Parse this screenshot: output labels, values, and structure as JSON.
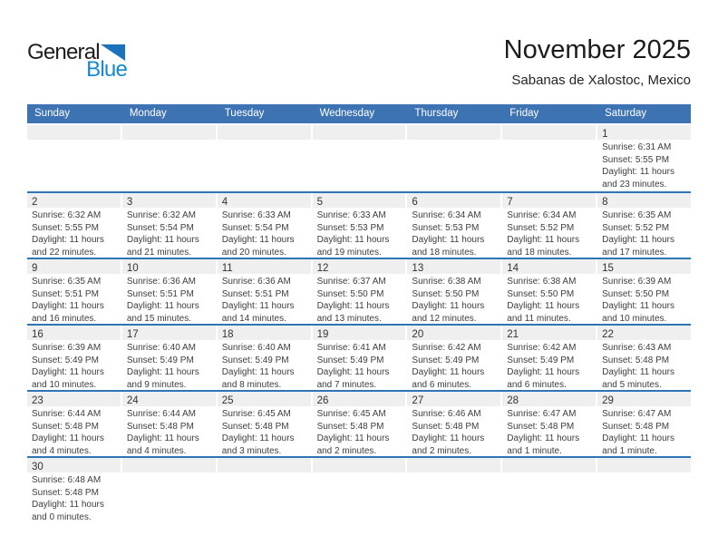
{
  "logo": {
    "general": "General",
    "blue": "Blue"
  },
  "header": {
    "title": "November 2025",
    "subtitle": "Sabanas de Xalostoc, Mexico"
  },
  "colors": {
    "header_bar": "#3D73B3",
    "week_divider": "#2E75B6",
    "day_band": "#EFEFEF",
    "logo_blue": "#1789D1",
    "logo_triangle": "#1C73BB"
  },
  "calendar": {
    "day_headers": [
      "Sunday",
      "Monday",
      "Tuesday",
      "Wednesday",
      "Thursday",
      "Friday",
      "Saturday"
    ],
    "weeks": [
      [
        null,
        null,
        null,
        null,
        null,
        null,
        {
          "day": "1",
          "sunrise": "Sunrise: 6:31 AM",
          "sunset": "Sunset: 5:55 PM",
          "daylight": "Daylight: 11 hours and 23 minutes."
        }
      ],
      [
        {
          "day": "2",
          "sunrise": "Sunrise: 6:32 AM",
          "sunset": "Sunset: 5:55 PM",
          "daylight": "Daylight: 11 hours and 22 minutes."
        },
        {
          "day": "3",
          "sunrise": "Sunrise: 6:32 AM",
          "sunset": "Sunset: 5:54 PM",
          "daylight": "Daylight: 11 hours and 21 minutes."
        },
        {
          "day": "4",
          "sunrise": "Sunrise: 6:33 AM",
          "sunset": "Sunset: 5:54 PM",
          "daylight": "Daylight: 11 hours and 20 minutes."
        },
        {
          "day": "5",
          "sunrise": "Sunrise: 6:33 AM",
          "sunset": "Sunset: 5:53 PM",
          "daylight": "Daylight: 11 hours and 19 minutes."
        },
        {
          "day": "6",
          "sunrise": "Sunrise: 6:34 AM",
          "sunset": "Sunset: 5:53 PM",
          "daylight": "Daylight: 11 hours and 18 minutes."
        },
        {
          "day": "7",
          "sunrise": "Sunrise: 6:34 AM",
          "sunset": "Sunset: 5:52 PM",
          "daylight": "Daylight: 11 hours and 18 minutes."
        },
        {
          "day": "8",
          "sunrise": "Sunrise: 6:35 AM",
          "sunset": "Sunset: 5:52 PM",
          "daylight": "Daylight: 11 hours and 17 minutes."
        }
      ],
      [
        {
          "day": "9",
          "sunrise": "Sunrise: 6:35 AM",
          "sunset": "Sunset: 5:51 PM",
          "daylight": "Daylight: 11 hours and 16 minutes."
        },
        {
          "day": "10",
          "sunrise": "Sunrise: 6:36 AM",
          "sunset": "Sunset: 5:51 PM",
          "daylight": "Daylight: 11 hours and 15 minutes."
        },
        {
          "day": "11",
          "sunrise": "Sunrise: 6:36 AM",
          "sunset": "Sunset: 5:51 PM",
          "daylight": "Daylight: 11 hours and 14 minutes."
        },
        {
          "day": "12",
          "sunrise": "Sunrise: 6:37 AM",
          "sunset": "Sunset: 5:50 PM",
          "daylight": "Daylight: 11 hours and 13 minutes."
        },
        {
          "day": "13",
          "sunrise": "Sunrise: 6:38 AM",
          "sunset": "Sunset: 5:50 PM",
          "daylight": "Daylight: 11 hours and 12 minutes."
        },
        {
          "day": "14",
          "sunrise": "Sunrise: 6:38 AM",
          "sunset": "Sunset: 5:50 PM",
          "daylight": "Daylight: 11 hours and 11 minutes."
        },
        {
          "day": "15",
          "sunrise": "Sunrise: 6:39 AM",
          "sunset": "Sunset: 5:50 PM",
          "daylight": "Daylight: 11 hours and 10 minutes."
        }
      ],
      [
        {
          "day": "16",
          "sunrise": "Sunrise: 6:39 AM",
          "sunset": "Sunset: 5:49 PM",
          "daylight": "Daylight: 11 hours and 10 minutes."
        },
        {
          "day": "17",
          "sunrise": "Sunrise: 6:40 AM",
          "sunset": "Sunset: 5:49 PM",
          "daylight": "Daylight: 11 hours and 9 minutes."
        },
        {
          "day": "18",
          "sunrise": "Sunrise: 6:40 AM",
          "sunset": "Sunset: 5:49 PM",
          "daylight": "Daylight: 11 hours and 8 minutes."
        },
        {
          "day": "19",
          "sunrise": "Sunrise: 6:41 AM",
          "sunset": "Sunset: 5:49 PM",
          "daylight": "Daylight: 11 hours and 7 minutes."
        },
        {
          "day": "20",
          "sunrise": "Sunrise: 6:42 AM",
          "sunset": "Sunset: 5:49 PM",
          "daylight": "Daylight: 11 hours and 6 minutes."
        },
        {
          "day": "21",
          "sunrise": "Sunrise: 6:42 AM",
          "sunset": "Sunset: 5:49 PM",
          "daylight": "Daylight: 11 hours and 6 minutes."
        },
        {
          "day": "22",
          "sunrise": "Sunrise: 6:43 AM",
          "sunset": "Sunset: 5:48 PM",
          "daylight": "Daylight: 11 hours and 5 minutes."
        }
      ],
      [
        {
          "day": "23",
          "sunrise": "Sunrise: 6:44 AM",
          "sunset": "Sunset: 5:48 PM",
          "daylight": "Daylight: 11 hours and 4 minutes."
        },
        {
          "day": "24",
          "sunrise": "Sunrise: 6:44 AM",
          "sunset": "Sunset: 5:48 PM",
          "daylight": "Daylight: 11 hours and 4 minutes."
        },
        {
          "day": "25",
          "sunrise": "Sunrise: 6:45 AM",
          "sunset": "Sunset: 5:48 PM",
          "daylight": "Daylight: 11 hours and 3 minutes."
        },
        {
          "day": "26",
          "sunrise": "Sunrise: 6:45 AM",
          "sunset": "Sunset: 5:48 PM",
          "daylight": "Daylight: 11 hours and 2 minutes."
        },
        {
          "day": "27",
          "sunrise": "Sunrise: 6:46 AM",
          "sunset": "Sunset: 5:48 PM",
          "daylight": "Daylight: 11 hours and 2 minutes."
        },
        {
          "day": "28",
          "sunrise": "Sunrise: 6:47 AM",
          "sunset": "Sunset: 5:48 PM",
          "daylight": "Daylight: 11 hours and 1 minute."
        },
        {
          "day": "29",
          "sunrise": "Sunrise: 6:47 AM",
          "sunset": "Sunset: 5:48 PM",
          "daylight": "Daylight: 11 hours and 1 minute."
        }
      ],
      [
        {
          "day": "30",
          "sunrise": "Sunrise: 6:48 AM",
          "sunset": "Sunset: 5:48 PM",
          "daylight": "Daylight: 11 hours and 0 minutes."
        },
        null,
        null,
        null,
        null,
        null,
        null
      ]
    ]
  }
}
